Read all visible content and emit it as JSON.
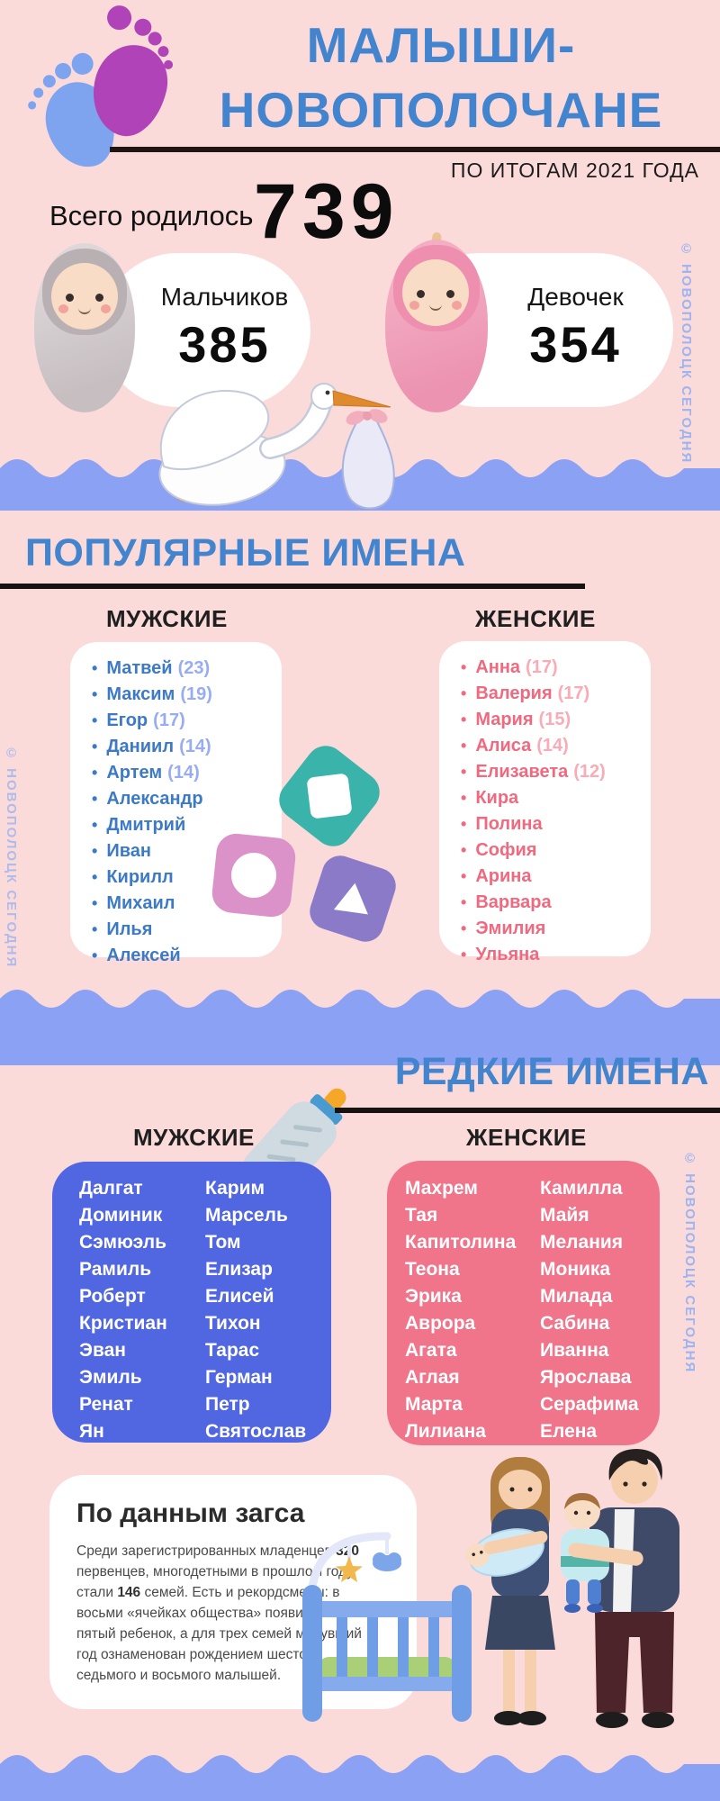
{
  "watermark": "© НОВОПОЛОЦК СЕГОДНЯ",
  "header": {
    "title_line1": "МАЛЫШИ-",
    "title_line2": "НОВОПОЛОЧАНЕ",
    "subtitle": "ПО ИТОГАМ 2021 ГОДА",
    "total_label": "Всего родилось",
    "total_value": "739"
  },
  "totals": {
    "boys_label": "Мальчиков",
    "boys_value": "385",
    "girls_label": "Девочек",
    "girls_value": "354"
  },
  "popular": {
    "section_title": "ПОПУЛЯРНЫЕ ИМЕНА",
    "male_header": "МУЖСКИЕ",
    "female_header": "ЖЕНСКИЕ",
    "male_names": [
      {
        "name": "Матвей",
        "count": "(23)"
      },
      {
        "name": "Максим",
        "count": "(19)"
      },
      {
        "name": "Егор",
        "count": "(17)"
      },
      {
        "name": "Даниил",
        "count": "(14)"
      },
      {
        "name": "Артем",
        "count": "(14)"
      },
      {
        "name": "Александр"
      },
      {
        "name": "Дмитрий"
      },
      {
        "name": "Иван"
      },
      {
        "name": "Кирилл"
      },
      {
        "name": "Михаил"
      },
      {
        "name": "Илья"
      },
      {
        "name": "Алексей"
      }
    ],
    "female_names": [
      {
        "name": "Анна",
        "count": "(17)"
      },
      {
        "name": "Валерия",
        "count": "(17)"
      },
      {
        "name": "Мария",
        "count": "(15)"
      },
      {
        "name": "Алиса",
        "count": "(14)"
      },
      {
        "name": "Елизавета",
        "count": "(12)"
      },
      {
        "name": "Кира"
      },
      {
        "name": "Полина"
      },
      {
        "name": "София"
      },
      {
        "name": "Арина"
      },
      {
        "name": "Варвара"
      },
      {
        "name": "Эмилия"
      },
      {
        "name": "Ульяна"
      }
    ]
  },
  "rare": {
    "section_title": "РЕДКИЕ ИМЕНА",
    "male_header": "МУЖСКИЕ",
    "female_header": "ЖЕНСКИЕ",
    "male_col1": [
      "Далгат",
      "Доминик",
      "Сэмюэль",
      "Рамиль",
      "Роберт",
      "Кристиан",
      "Эван",
      "Эмиль",
      "Ренат",
      "Ян"
    ],
    "male_col2": [
      "Карим",
      "Марсель",
      "Том",
      "Елизар",
      "Елисей",
      "Тихон",
      "Тарас",
      "Герман",
      "Петр",
      "Святослав"
    ],
    "female_col1": [
      "Махрем",
      "Тая",
      "Капитолина",
      "Теона",
      "Эрика",
      "Аврора",
      "Агата",
      "Аглая",
      "Марта",
      "Лилиана"
    ],
    "female_col2": [
      "Камилла",
      "Майя",
      "Мелания",
      "Моника",
      "Милада",
      "Сабина",
      "Иванна",
      "Ярослава",
      "Серафима",
      "Елена"
    ]
  },
  "zags": {
    "title": "По данным загса",
    "segments": [
      {
        "t": "Среди зарегистрированных младенцев "
      },
      {
        "t": "320",
        "b": true
      },
      {
        "t": " первенцев, многодетными в прошлом году стали "
      },
      {
        "t": "146",
        "b": true
      },
      {
        "t": " семей. Есть и рекордсмены: в восьми «ячейках общества» появился пятый ребенок, а для трех семей минувший год ознаменован рождением шестого, седьмого и восьмого малышей."
      }
    ]
  },
  "colors": {
    "background_pink": "#fbdada",
    "title_blue": "#4384cf",
    "wave_blue": "#8ba1f3",
    "popular_male_text": "#3c7ac7",
    "popular_male_count": "#98abf5",
    "popular_female_text": "#f0697f",
    "popular_female_count": "#f9abb6",
    "rare_male_card": "#5166e1",
    "rare_female_card": "#f0758a",
    "toy_teal": "#3ab3ab",
    "toy_pink": "#db92c8",
    "toy_purple": "#8b7ac8"
  }
}
